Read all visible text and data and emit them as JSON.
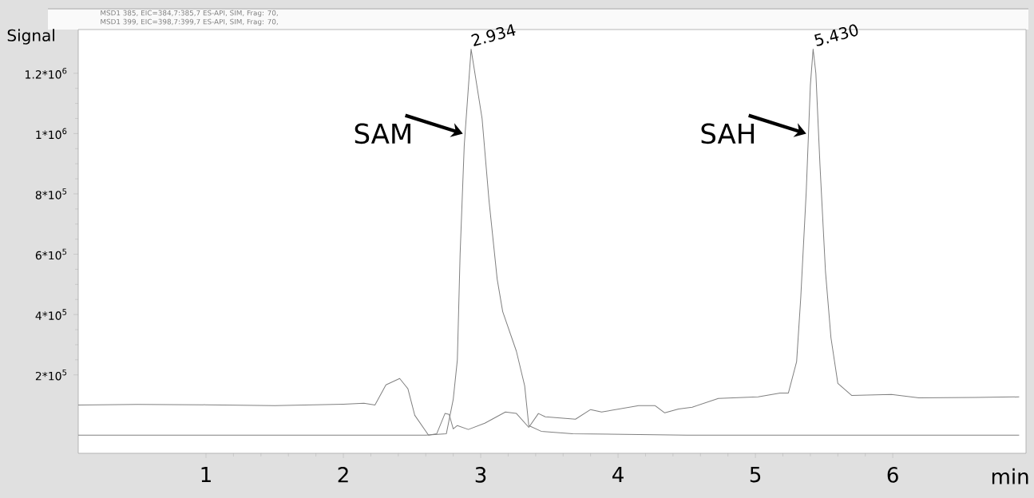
{
  "chart_data": {
    "type": "line",
    "ylabel": "Signal",
    "xlabel": "min",
    "annotations": [
      "MSD1 385, EIC=384,7:385,7 ES-API, SIM, Frag: 70,",
      "MSD1 399, EIC=398,7:399,7 ES-API, SIM, Frag: 70,",
      {
        "text": "2.934",
        "x": 2.934,
        "y": 1280000
      },
      {
        "text": "5.430",
        "x": 5.43,
        "y": 1280000
      },
      {
        "text": "SAM",
        "x": 2.87,
        "y": 1000000
      },
      {
        "text": "SAH",
        "x": 5.37,
        "y": 1000000
      }
    ],
    "xlim": [
      0.07,
      6.97
    ],
    "ylim": [
      -60000,
      1345000
    ],
    "xticks": [
      1,
      2,
      3,
      4,
      5,
      6
    ],
    "yticks": [
      {
        "value": 200000,
        "label": "2*10$^{5}$"
      },
      {
        "value": 400000,
        "label": "4*10$^{5}$"
      },
      {
        "value": 600000,
        "label": "6*10$^{5}$"
      },
      {
        "value": 800000,
        "label": "8*10$^{5}$"
      },
      {
        "value": 1000000,
        "label": "1*10$^{6}$"
      },
      {
        "value": 1200000,
        "label": "1.2*10$^{6}$"
      }
    ],
    "grid": false,
    "marker": "none",
    "line_style": "solid",
    "series": [
      {
        "color": "#808080",
        "x": [
          0.07,
          0.5,
          1.0,
          1.5,
          2.0,
          2.15,
          2.23,
          2.31,
          2.41,
          2.47,
          2.52,
          2.62,
          2.68,
          2.74,
          2.77,
          2.8,
          2.83,
          2.91,
          3.03,
          3.18,
          3.26,
          3.35,
          3.42,
          3.47,
          3.69,
          3.8,
          3.88,
          4.15,
          4.27,
          4.34,
          4.44,
          4.54,
          4.73,
          5.02,
          5.18,
          5.24,
          5.3,
          5.33,
          5.37,
          5.4,
          5.42,
          5.44,
          5.47,
          5.51,
          5.55,
          5.6,
          5.7,
          5.99,
          6.19,
          6.6,
          6.92
        ],
        "values": [
          100000,
          102000,
          101000,
          98000,
          103000,
          106000,
          100000,
          167000,
          188000,
          154000,
          66000,
          0,
          5000,
          72000,
          69000,
          21000,
          32000,
          19000,
          40000,
          77000,
          72000,
          26000,
          72000,
          61000,
          53000,
          85000,
          77000,
          98000,
          98000,
          74000,
          87000,
          93000,
          122000,
          127000,
          140000,
          140000,
          244000,
          456000,
          808000,
          1160000,
          1280000,
          1200000,
          895000,
          543000,
          323000,
          172000,
          132000,
          135000,
          124000,
          125000,
          127000
        ]
      },
      {
        "color": "#808080",
        "x": [
          0.07,
          1.0,
          2.0,
          2.6,
          2.75,
          2.8,
          2.83,
          2.85,
          2.88,
          2.93,
          3.01,
          3.06,
          3.12,
          3.16,
          3.26,
          3.32,
          3.35,
          3.44,
          3.67,
          4.5,
          5.5,
          6.92
        ],
        "values": [
          0,
          0,
          0,
          0,
          5000,
          119000,
          250000,
          600000,
          960000,
          1280000,
          1050000,
          780000,
          517000,
          410000,
          278000,
          164000,
          32000,
          13000,
          5000,
          0,
          0,
          0
        ]
      }
    ]
  }
}
